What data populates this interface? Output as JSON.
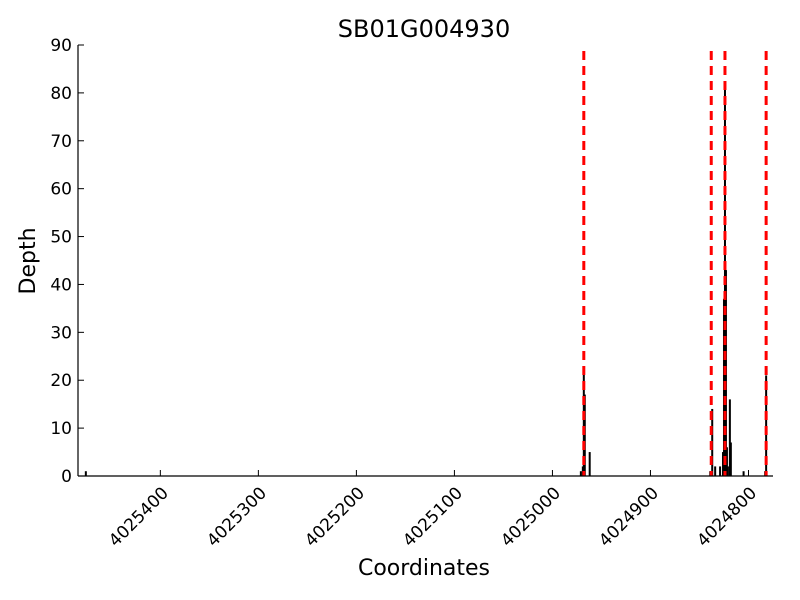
{
  "chart_data": {
    "type": "bar",
    "title": "SB01G004930",
    "xlabel": "Coordinates",
    "ylabel": "Depth",
    "xlim": [
      4025484,
      4024775
    ],
    "x_inverted": true,
    "ylim": [
      0,
      90
    ],
    "yticks": [
      0,
      10,
      20,
      30,
      40,
      50,
      60,
      70,
      80,
      90
    ],
    "xticks": [
      4025400,
      4025300,
      4025200,
      4025100,
      4025000,
      4024900,
      4024800
    ],
    "grid": false,
    "legend": "none",
    "bar_color": "#000000",
    "marker_color": "#ff0000",
    "bars": [
      {
        "x": 4025476,
        "depth": 1
      },
      {
        "x": 4024971,
        "depth": 1
      },
      {
        "x": 4024969,
        "depth": 2
      },
      {
        "x": 4024968,
        "depth": 22
      },
      {
        "x": 4024967,
        "depth": 17
      },
      {
        "x": 4024962,
        "depth": 5
      },
      {
        "x": 4024839,
        "depth": 1
      },
      {
        "x": 4024837,
        "depth": 14
      },
      {
        "x": 4024834,
        "depth": 2
      },
      {
        "x": 4024829,
        "depth": 2
      },
      {
        "x": 4024826,
        "depth": 5
      },
      {
        "x": 4024825,
        "depth": 37
      },
      {
        "x": 4024824,
        "depth": 81
      },
      {
        "x": 4024823,
        "depth": 43
      },
      {
        "x": 4024822,
        "depth": 6
      },
      {
        "x": 4024821,
        "depth": 2
      },
      {
        "x": 4024819,
        "depth": 16
      },
      {
        "x": 4024818,
        "depth": 7
      },
      {
        "x": 4024805,
        "depth": 1
      },
      {
        "x": 4024783,
        "depth": 1
      },
      {
        "x": 4024782,
        "depth": 21
      }
    ],
    "vertical_markers": [
      {
        "x": 4024968,
        "style": "dashed"
      },
      {
        "x": 4024838,
        "style": "dashed"
      },
      {
        "x": 4024824,
        "style": "dashed"
      },
      {
        "x": 4024782,
        "style": "dashed"
      }
    ]
  }
}
